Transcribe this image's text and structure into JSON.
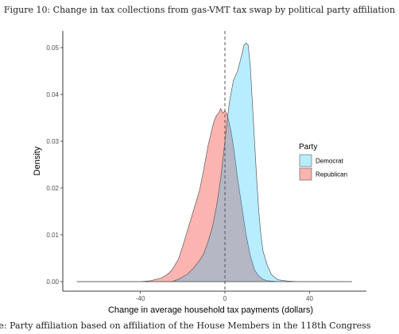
{
  "figure": {
    "title": "Figure 10: Change in tax collections from gas-VMT tax swap by political party affiliation",
    "note": "te: Party affiliation based on affiliation of the House Members in the 118th Congress"
  },
  "chart_data": {
    "type": "area",
    "xlabel": "Change in average household tax payments (dollars)",
    "ylabel": "Density",
    "xlim": [
      -70,
      60
    ],
    "ylim": [
      0,
      0.053
    ],
    "x_ticks": [
      -40,
      0,
      40
    ],
    "x_tick_labels": [
      "-40",
      "0",
      "40"
    ],
    "y_ticks": [
      0.0,
      0.01,
      0.02,
      0.03,
      0.04,
      0.05
    ],
    "y_tick_labels": [
      "0.00",
      "0.01",
      "0.02",
      "0.03",
      "0.04",
      "0.05"
    ],
    "reference_line": {
      "x": 0,
      "style": "dashed"
    },
    "grid": false,
    "legend": {
      "title": "Party",
      "position": "right"
    },
    "series": [
      {
        "name": "Republican",
        "color": "#F8766D",
        "x": [
          -70,
          -40,
          -35,
          -30,
          -27,
          -25,
          -22,
          -20,
          -18,
          -15,
          -12,
          -10,
          -8,
          -6,
          -5,
          -4,
          -3,
          -2,
          -1,
          0,
          1,
          2,
          3,
          4,
          5,
          6,
          8,
          10,
          12,
          14,
          16,
          18,
          20,
          22,
          25,
          30,
          35,
          40,
          60
        ],
        "y": [
          0,
          0,
          0.0002,
          0.0008,
          0.0016,
          0.0025,
          0.0048,
          0.0075,
          0.0105,
          0.015,
          0.0195,
          0.024,
          0.029,
          0.0328,
          0.0345,
          0.0355,
          0.036,
          0.037,
          0.036,
          0.0365,
          0.0358,
          0.034,
          0.0318,
          0.029,
          0.0255,
          0.022,
          0.016,
          0.01,
          0.0055,
          0.0025,
          0.0012,
          0.0005,
          0.0002,
          0.0001,
          0,
          0,
          0,
          0,
          0
        ]
      },
      {
        "name": "Democrat",
        "color": "#00BFFF",
        "x": [
          -70,
          -25,
          -22,
          -18,
          -15,
          -12,
          -10,
          -8,
          -6,
          -4,
          -2,
          0,
          2,
          4,
          6,
          8,
          9,
          10,
          11,
          12,
          13,
          14,
          15,
          16,
          17,
          18,
          20,
          22,
          25,
          30,
          35,
          60
        ],
        "y": [
          0,
          0,
          0.0005,
          0.0015,
          0.0028,
          0.0045,
          0.006,
          0.0085,
          0.0115,
          0.016,
          0.022,
          0.03,
          0.038,
          0.043,
          0.045,
          0.0485,
          0.0505,
          0.051,
          0.0505,
          0.046,
          0.038,
          0.03,
          0.022,
          0.015,
          0.01,
          0.0065,
          0.0035,
          0.0015,
          0.0004,
          0.0001,
          0,
          0
        ]
      }
    ]
  }
}
